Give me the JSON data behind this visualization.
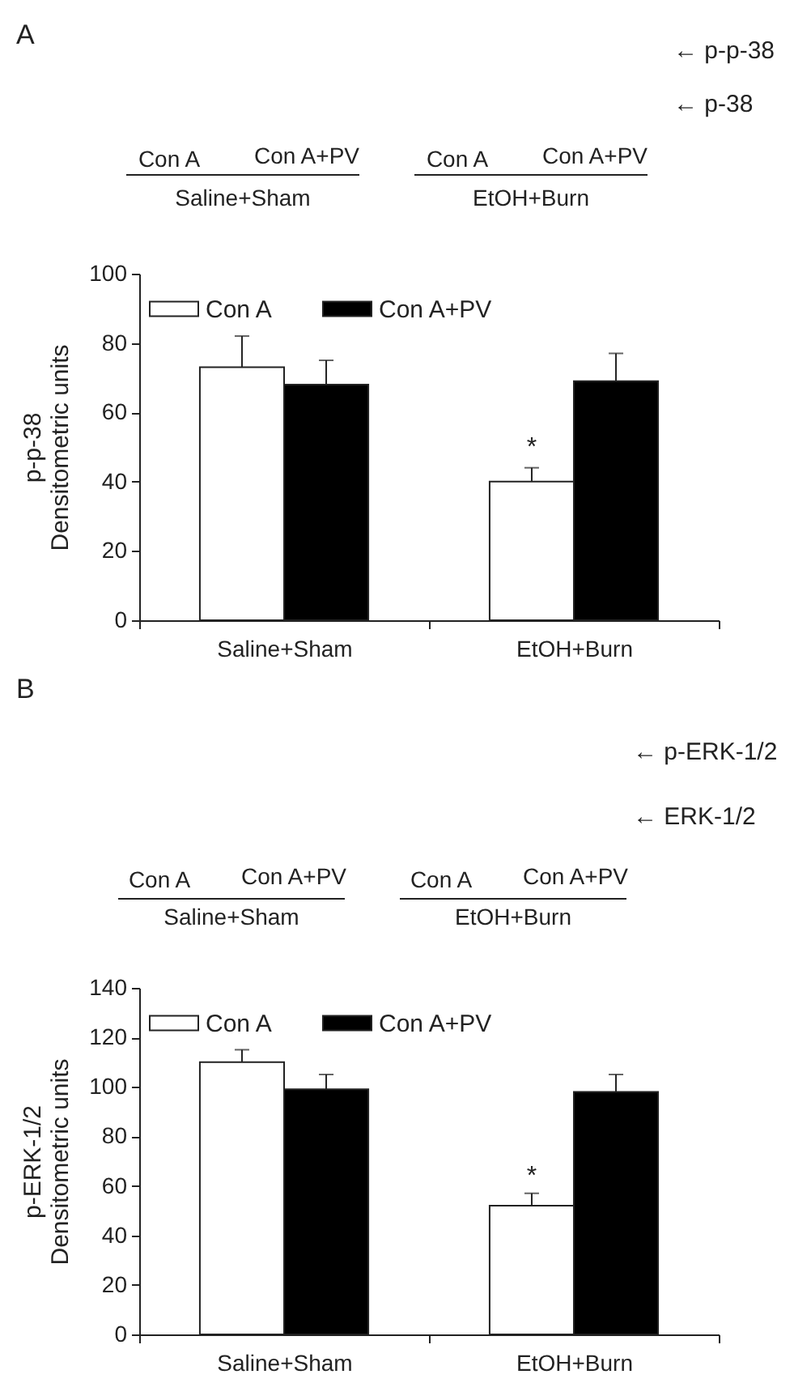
{
  "chart_data": [
    {
      "type": "bar",
      "title": "A",
      "ylabel": "p-p-38\nDensitometric units",
      "categories": [
        "Saline+Sham",
        "EtOH+Burn"
      ],
      "series": [
        {
          "name": "Con A",
          "color": "#ffffff",
          "values": [
            73,
            40
          ],
          "errors": [
            [
              73,
              82
            ],
            [
              40,
              44
            ]
          ]
        },
        {
          "name": "Con A+PV",
          "color": "#000000",
          "values": [
            68,
            69
          ],
          "errors": [
            [
              68,
              75
            ],
            [
              69,
              77
            ]
          ]
        }
      ],
      "ylim": [
        0,
        100
      ],
      "yticks": [
        0,
        20,
        40,
        60,
        80,
        100
      ],
      "legend": "top left",
      "annotations": [
        "← p-p-38",
        "← p-38",
        {
          "text": "*",
          "x": "EtOH+Burn",
          "y": 50
        }
      ]
    },
    {
      "type": "bar",
      "title": "B",
      "ylabel": "p-ERK-1/2\nDensitometric units",
      "categories": [
        "Saline+Sham",
        "EtOH+Burn"
      ],
      "series": [
        {
          "name": "Con A",
          "color": "#ffffff",
          "values": [
            110,
            52
          ],
          "errors": [
            [
              110,
              115
            ],
            [
              52,
              57
            ]
          ]
        },
        {
          "name": "Con A+PV",
          "color": "#000000",
          "values": [
            99,
            98
          ],
          "errors": [
            [
              99,
              105
            ],
            [
              98,
              105
            ]
          ]
        }
      ],
      "ylim": [
        0,
        140
      ],
      "yticks": [
        0,
        20,
        40,
        60,
        80,
        100,
        120,
        140
      ],
      "legend": "top left",
      "annotations": [
        "← p-ERK-1/2",
        "← ERK-1/2",
        {
          "text": "*",
          "x": "EtOH+Burn",
          "y": 64
        }
      ]
    }
  ]
}
